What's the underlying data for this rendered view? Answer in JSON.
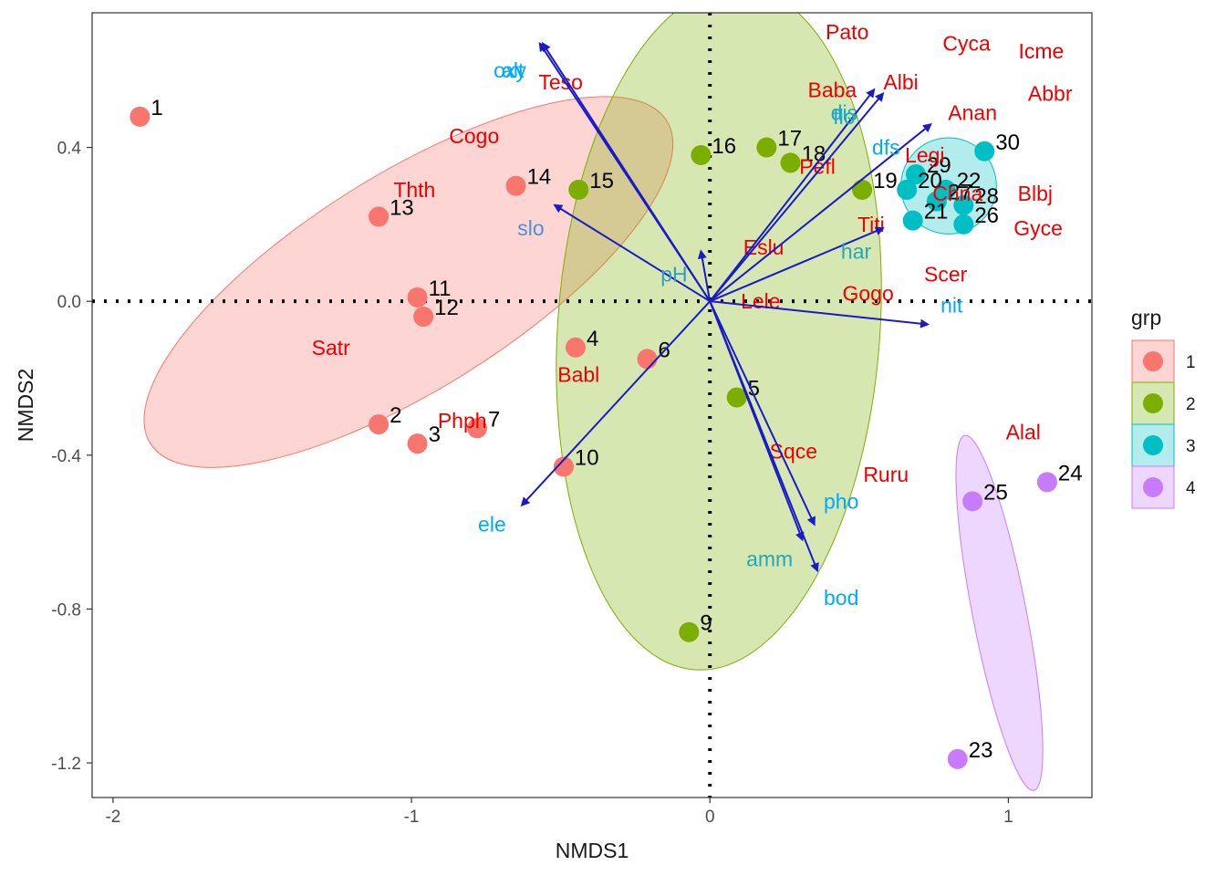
{
  "chart_data": {
    "type": "scatter",
    "title": "",
    "xlabel": "NMDS1",
    "ylabel": "NMDS2",
    "xlim": [
      -2.07,
      1.28
    ],
    "ylim": [
      -1.29,
      0.75
    ],
    "x_ticks": [
      -2,
      -1,
      0,
      1
    ],
    "x_tick_labels": [
      "-2",
      "-1",
      "0",
      "1"
    ],
    "y_ticks": [
      0.4,
      0.0,
      -0.4,
      -0.8,
      -1.2
    ],
    "y_tick_labels": [
      "0.4",
      "0.0",
      "-0.4",
      "-0.8",
      "-1.2"
    ],
    "grid": false,
    "reference_lines": {
      "x": 0,
      "y": 0,
      "style": "dotted"
    },
    "legend": {
      "title": "grp",
      "placement": "right",
      "entries": [
        {
          "label": "1",
          "color": "#F8766D"
        },
        {
          "label": "2",
          "color": "#7CAE00"
        },
        {
          "label": "3",
          "color": "#00BFC4"
        },
        {
          "label": "4",
          "color": "#C77CFF"
        }
      ]
    },
    "sites": [
      {
        "label": "1",
        "grp": "1",
        "x": -1.91,
        "y": 0.48
      },
      {
        "label": "2",
        "grp": "1",
        "x": -1.11,
        "y": -0.32
      },
      {
        "label": "3",
        "grp": "1",
        "x": -0.98,
        "y": -0.37
      },
      {
        "label": "4",
        "grp": "1",
        "x": -0.45,
        "y": -0.12
      },
      {
        "label": "6",
        "grp": "1",
        "x": -0.21,
        "y": -0.15
      },
      {
        "label": "7",
        "grp": "1",
        "x": -0.78,
        "y": -0.33
      },
      {
        "label": "10",
        "grp": "1",
        "x": -0.49,
        "y": -0.43
      },
      {
        "label": "11",
        "grp": "1",
        "x": -0.98,
        "y": 0.01
      },
      {
        "label": "12",
        "grp": "1",
        "x": -0.96,
        "y": -0.04
      },
      {
        "label": "13",
        "grp": "1",
        "x": -1.11,
        "y": 0.22
      },
      {
        "label": "14",
        "grp": "1",
        "x": -0.65,
        "y": 0.3
      },
      {
        "label": "5",
        "grp": "2",
        "x": 0.09,
        "y": -0.25
      },
      {
        "label": "9",
        "grp": "2",
        "x": -0.07,
        "y": -0.86
      },
      {
        "label": "15",
        "grp": "2",
        "x": -0.44,
        "y": 0.29
      },
      {
        "label": "16",
        "grp": "2",
        "x": -0.03,
        "y": 0.38
      },
      {
        "label": "17",
        "grp": "2",
        "x": 0.19,
        "y": 0.4
      },
      {
        "label": "18",
        "grp": "2",
        "x": 0.27,
        "y": 0.36
      },
      {
        "label": "19",
        "grp": "2",
        "x": 0.51,
        "y": 0.29
      },
      {
        "label": "20",
        "grp": "3",
        "x": 0.66,
        "y": 0.29
      },
      {
        "label": "21",
        "grp": "3",
        "x": 0.68,
        "y": 0.21
      },
      {
        "label": "22",
        "grp": "3",
        "x": 0.79,
        "y": 0.29
      },
      {
        "label": "26",
        "grp": "3",
        "x": 0.85,
        "y": 0.2
      },
      {
        "label": "27",
        "grp": "3",
        "x": 0.76,
        "y": 0.26
      },
      {
        "label": "28",
        "grp": "3",
        "x": 0.85,
        "y": 0.25
      },
      {
        "label": "29",
        "grp": "3",
        "x": 0.69,
        "y": 0.33
      },
      {
        "label": "30",
        "grp": "3",
        "x": 0.92,
        "y": 0.39
      },
      {
        "label": "23",
        "grp": "4",
        "x": 0.83,
        "y": -1.19
      },
      {
        "label": "24",
        "grp": "4",
        "x": 1.13,
        "y": -0.47
      },
      {
        "label": "25",
        "grp": "4",
        "x": 0.88,
        "y": -0.52
      }
    ],
    "ellipses": [
      {
        "grp": "1",
        "cx": -1.01,
        "cy": 0.05,
        "rx": 1.02,
        "ry": 0.28,
        "angle_deg": 32
      },
      {
        "grp": "2",
        "cx": 0.03,
        "cy": -0.07,
        "rx": 0.54,
        "ry": 0.89,
        "angle_deg": -4
      },
      {
        "grp": "3",
        "cx": 0.8,
        "cy": 0.3,
        "rx": 0.16,
        "ry": 0.125,
        "angle_deg": 0
      },
      {
        "grp": "4",
        "cx": 0.97,
        "cy": -0.81,
        "rx": 0.09,
        "ry": 0.47,
        "angle_deg": 11
      }
    ],
    "species": [
      {
        "label": "Pato",
        "x": 0.46,
        "y": 0.7
      },
      {
        "label": "Cyca",
        "x": 0.86,
        "y": 0.67
      },
      {
        "label": "Icme",
        "x": 1.11,
        "y": 0.65
      },
      {
        "label": "Albi",
        "x": 0.64,
        "y": 0.57
      },
      {
        "label": "Abbr",
        "x": 1.14,
        "y": 0.54
      },
      {
        "label": "Baba",
        "x": 0.41,
        "y": 0.55
      },
      {
        "label": "Anan",
        "x": 0.88,
        "y": 0.49
      },
      {
        "label": "Teso",
        "x": -0.5,
        "y": 0.57
      },
      {
        "label": "Cogo",
        "x": -0.79,
        "y": 0.43
      },
      {
        "label": "Legi",
        "x": 0.72,
        "y": 0.38
      },
      {
        "label": "Pefl",
        "x": 0.36,
        "y": 0.35
      },
      {
        "label": "Chna",
        "x": 0.83,
        "y": 0.28
      },
      {
        "label": "Blbj",
        "x": 1.09,
        "y": 0.28
      },
      {
        "label": "Thth",
        "x": -0.99,
        "y": 0.29
      },
      {
        "label": "Titi",
        "x": 0.54,
        "y": 0.2
      },
      {
        "label": "Gyce",
        "x": 1.1,
        "y": 0.19
      },
      {
        "label": "Eslu",
        "x": 0.18,
        "y": 0.14
      },
      {
        "label": "Scer",
        "x": 0.79,
        "y": 0.07
      },
      {
        "label": "Gogo",
        "x": 0.53,
        "y": 0.02
      },
      {
        "label": "Lele",
        "x": 0.17,
        "y": -0.0
      },
      {
        "label": "Satr",
        "x": -1.27,
        "y": -0.12
      },
      {
        "label": "Babl",
        "x": -0.44,
        "y": -0.19
      },
      {
        "label": "Phph",
        "x": -0.83,
        "y": -0.31
      },
      {
        "label": "Sqce",
        "x": 0.28,
        "y": -0.39
      },
      {
        "label": "Ruru",
        "x": 0.59,
        "y": -0.45
      },
      {
        "label": "Alal",
        "x": 1.05,
        "y": -0.34
      }
    ],
    "env_vectors": [
      {
        "label": "dfs",
        "x": 0.74,
        "y": 0.46,
        "label_x": 0.59,
        "label_y": 0.4,
        "color": "#00A9FF"
      },
      {
        "label": "alt",
        "x": -0.57,
        "y": 0.67,
        "label_x": -0.66,
        "label_y": 0.6,
        "color": "#00A9FF"
      },
      {
        "label": "slo",
        "x": -0.52,
        "y": 0.25,
        "label_x": -0.6,
        "label_y": 0.19,
        "color": "#4D90D9"
      },
      {
        "label": "flo",
        "x": 0.55,
        "y": 0.55,
        "label_x": 0.45,
        "label_y": 0.48,
        "color": "#1BA9C8"
      },
      {
        "label": "har",
        "x": 0.58,
        "y": 0.19,
        "label_x": 0.49,
        "label_y": 0.13,
        "color": "#22A8B8"
      },
      {
        "label": "pH",
        "x": -0.03,
        "y": 0.13,
        "label_x": -0.12,
        "label_y": 0.07,
        "color": "#30A0BE"
      },
      {
        "label": "nit",
        "x": 0.73,
        "y": -0.06,
        "label_x": 0.81,
        "label_y": -0.01,
        "color": "#00A9FF"
      },
      {
        "label": "pho",
        "x": 0.35,
        "y": -0.58,
        "label_x": 0.44,
        "label_y": -0.52,
        "color": "#00A9FF"
      },
      {
        "label": "amm",
        "x": 0.31,
        "y": -0.62,
        "label_x": 0.2,
        "label_y": -0.67,
        "color": "#22A8B8"
      },
      {
        "label": "bod",
        "x": 0.36,
        "y": -0.7,
        "label_x": 0.44,
        "label_y": -0.77,
        "color": "#00A9FF"
      },
      {
        "label": "oxy",
        "x": -0.56,
        "y": 0.67,
        "label_x": -0.67,
        "label_y": 0.6,
        "color": "#00A9FF"
      },
      {
        "label": "dis",
        "x": 0.58,
        "y": 0.54,
        "label_x": 0.45,
        "label_y": 0.49,
        "color": "#1BA9C8"
      },
      {
        "label": "ele",
        "x": -0.63,
        "y": -0.53,
        "label_x": -0.73,
        "label_y": -0.58,
        "color": "#00A9FF"
      }
    ],
    "arrow_color": "#1A1AC8"
  }
}
